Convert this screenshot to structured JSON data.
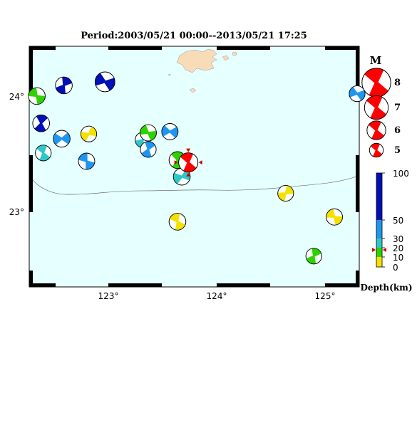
{
  "title": "Period:2003/05/21 00:00--2013/05/21 17:25",
  "colors": {
    "ocean": "#e6ffff",
    "land": "#f8dcb8",
    "frame": "#000000",
    "event": "#ff0000",
    "depth_0_10": "#f5e100",
    "depth_10_20": "#2dd300",
    "depth_20_30": "#2fc8c8",
    "depth_30_50": "#1e96f0",
    "depth_50_100": "#0010b4"
  },
  "axes": {
    "x_ticks": [
      "123°",
      "124°",
      "125°"
    ],
    "y_ticks": [
      "24°",
      "23°"
    ]
  },
  "magnitude_legend": {
    "heading": "M",
    "labels": [
      "8",
      "7",
      "6",
      "5"
    ]
  },
  "depth_legend": {
    "title": "Depth(km)",
    "labels": [
      "100",
      "50",
      "30",
      "20",
      "10",
      "0"
    ]
  },
  "chart_data": {
    "type": "scatter",
    "map_extent": {
      "lon": [
        122.25,
        125.3
      ],
      "lat": [
        22.4,
        24.43
      ]
    },
    "main_event": {
      "lon": 123.72,
      "lat": 23.45,
      "depth_km": 15,
      "magnitude": 6.1
    },
    "events": [
      {
        "lon": 122.32,
        "lat": 24.01,
        "depth": 15,
        "mag": 5.6
      },
      {
        "lon": 122.57,
        "lat": 24.1,
        "depth": 75,
        "mag": 5.6
      },
      {
        "lon": 122.95,
        "lat": 24.13,
        "depth": 75,
        "mag": 6.2
      },
      {
        "lon": 122.36,
        "lat": 23.78,
        "depth": 75,
        "mag": 5.6
      },
      {
        "lon": 122.55,
        "lat": 23.65,
        "depth": 40,
        "mag": 5.6
      },
      {
        "lon": 122.38,
        "lat": 23.53,
        "depth": 25,
        "mag": 5.4
      },
      {
        "lon": 122.8,
        "lat": 23.69,
        "depth": 5,
        "mag": 5.4
      },
      {
        "lon": 122.78,
        "lat": 23.46,
        "depth": 40,
        "mag": 5.5
      },
      {
        "lon": 123.3,
        "lat": 23.64,
        "depth": 25,
        "mag": 5.3
      },
      {
        "lon": 123.35,
        "lat": 23.7,
        "depth": 15,
        "mag": 5.5
      },
      {
        "lon": 123.35,
        "lat": 23.56,
        "depth": 40,
        "mag": 5.4
      },
      {
        "lon": 123.55,
        "lat": 23.71,
        "depth": 40,
        "mag": 5.5
      },
      {
        "lon": 123.62,
        "lat": 23.47,
        "depth": 15,
        "mag": 5.6
      },
      {
        "lon": 123.66,
        "lat": 23.33,
        "depth": 25,
        "mag": 5.6
      },
      {
        "lon": 123.62,
        "lat": 22.95,
        "depth": 5,
        "mag": 5.6
      },
      {
        "lon": 124.62,
        "lat": 23.19,
        "depth": 5,
        "mag": 5.4
      },
      {
        "lon": 125.07,
        "lat": 22.99,
        "depth": 5,
        "mag": 5.5
      },
      {
        "lon": 124.88,
        "lat": 22.66,
        "depth": 15,
        "mag": 5.4
      },
      {
        "lon": 125.28,
        "lat": 24.03,
        "depth": 40,
        "mag": 5.4
      }
    ]
  }
}
